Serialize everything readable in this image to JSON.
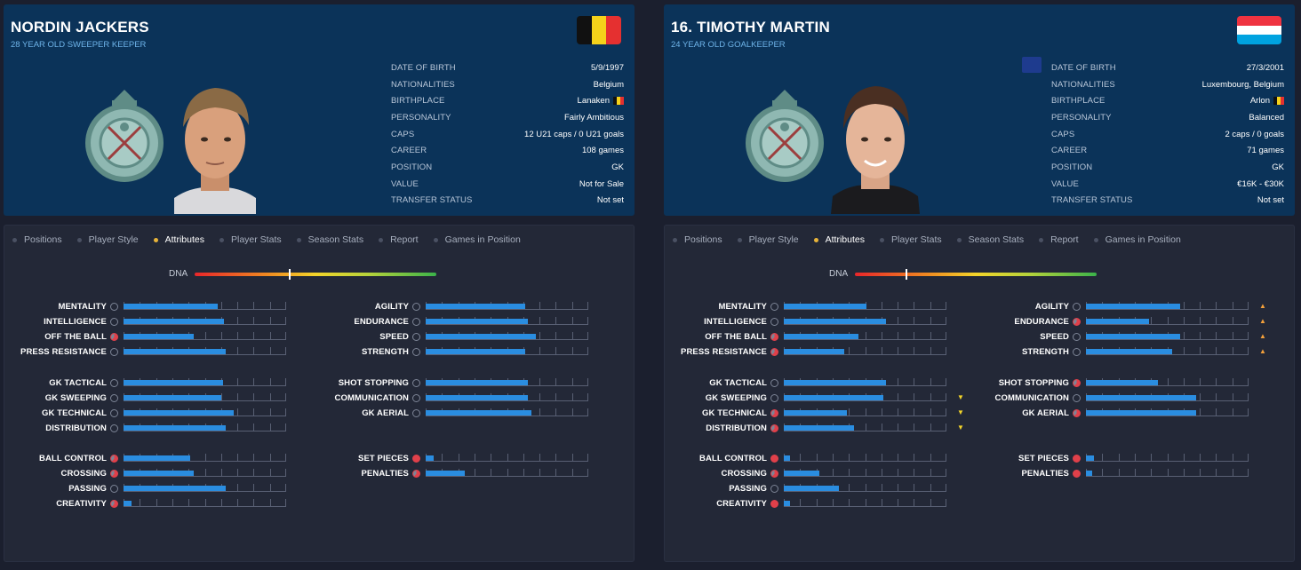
{
  "colors": {
    "accent": "#e8b43a",
    "bar": "#2a8de0",
    "header_bg": "#0b3359"
  },
  "tabs": [
    "Positions",
    "Player Style",
    "Attributes",
    "Player Stats",
    "Season Stats",
    "Report",
    "Games in Position"
  ],
  "active_tab": "Attributes",
  "dna_label": "DNA",
  "info_labels": {
    "dob": "DATE OF BIRTH",
    "nationalities": "NATIONALITIES",
    "birthplace": "BIRTHPLACE",
    "personality": "PERSONALITY",
    "caps": "CAPS",
    "career": "CAREER",
    "position": "POSITION",
    "value": "VALUE",
    "transfer": "TRANSFER STATUS"
  },
  "players": [
    {
      "name": "NORDIN JACKERS",
      "subtitle": "28 YEAR OLD  SWEEPER KEEPER",
      "flag": "belgium-flag",
      "club_crest": "royal-excelsior-virton-crest",
      "info": {
        "dob": "5/9/1997",
        "nationalities": "Belgium",
        "birthplace": "Lanaken",
        "personality": "Fairly Ambitious",
        "caps": "12 U21 caps / 0 U21 goals",
        "career": "108  games",
        "position": "GK",
        "value": "Not for Sale",
        "transfer": "Not set"
      },
      "dna_level": 0.39,
      "attributes": {
        "mental": [
          {
            "label": "MENTALITY",
            "level": 0.58
          },
          {
            "label": "INTELLIGENCE",
            "level": 0.62
          },
          {
            "label": "OFF THE BALL",
            "level": 0.43,
            "icon": "r"
          },
          {
            "label": "PRESS RESISTANCE",
            "level": 0.63
          }
        ],
        "physical": [
          {
            "label": "AGILITY",
            "level": 0.61
          },
          {
            "label": "ENDURANCE",
            "level": 0.63
          },
          {
            "label": "SPEED",
            "level": 0.68
          },
          {
            "label": "STRENGTH",
            "level": 0.61
          }
        ],
        "gk": [
          {
            "label": "GK TACTICAL",
            "level": 0.61
          },
          {
            "label": "GK SWEEPING",
            "level": 0.6
          },
          {
            "label": "GK TECHNICAL",
            "level": 0.68
          },
          {
            "label": "DISTRIBUTION",
            "level": 0.63
          }
        ],
        "gk2": [
          {
            "label": "SHOT STOPPING",
            "level": 0.63
          },
          {
            "label": "COMMUNICATION",
            "level": 0.63
          },
          {
            "label": "GK AERIAL",
            "level": 0.65
          }
        ],
        "technical": [
          {
            "label": "BALL CONTROL",
            "level": 0.41,
            "icon": "r"
          },
          {
            "label": "CROSSING",
            "level": 0.43,
            "icon": "r"
          },
          {
            "label": "PASSING",
            "level": 0.63
          },
          {
            "label": "CREATIVITY",
            "level": 0.05,
            "icon": "r"
          }
        ],
        "setpieces": [
          {
            "label": "SET PIECES",
            "level": 0.05,
            "icon": "rf"
          },
          {
            "label": "PENALTIES",
            "level": 0.24,
            "icon": "r"
          }
        ]
      }
    },
    {
      "name": "16. TIMOTHY MARTIN",
      "subtitle": "24 YEAR OLD GOALKEEPER",
      "flag": "luxembourg-flag",
      "club_crest": "royal-excelsior-virton-crest",
      "info": {
        "dob": "27/3/2001",
        "nationalities": "Luxembourg, Belgium",
        "birthplace": "Arlon",
        "personality": "Balanced",
        "caps": "2 caps / 0 goals",
        "career": "71  games",
        "position": "GK",
        "value": "€16K - €30K",
        "transfer": "Not set"
      },
      "dna_level": 0.21,
      "attributes": {
        "mental": [
          {
            "label": "MENTALITY",
            "level": 0.51
          },
          {
            "label": "INTELLIGENCE",
            "level": 0.63
          },
          {
            "label": "OFF THE BALL",
            "level": 0.46,
            "icon": "r"
          },
          {
            "label": "PRESS RESISTANCE",
            "level": 0.37,
            "icon": "r"
          }
        ],
        "physical": [
          {
            "label": "AGILITY",
            "level": 0.58,
            "arrow": "up"
          },
          {
            "label": "ENDURANCE",
            "level": 0.39,
            "icon": "r",
            "arrow": "up"
          },
          {
            "label": "SPEED",
            "level": 0.58,
            "arrow": "up"
          },
          {
            "label": "STRENGTH",
            "level": 0.53,
            "arrow": "up"
          }
        ],
        "gk": [
          {
            "label": "GK TACTICAL",
            "level": 0.63
          },
          {
            "label": "GK SWEEPING",
            "level": 0.61,
            "arrow": "down"
          },
          {
            "label": "GK TECHNICAL",
            "level": 0.39,
            "icon": "r",
            "arrow": "down"
          },
          {
            "label": "DISTRIBUTION",
            "level": 0.43,
            "icon": "r",
            "arrow": "down"
          }
        ],
        "gk2": [
          {
            "label": "SHOT STOPPING",
            "level": 0.44,
            "icon": "r"
          },
          {
            "label": "COMMUNICATION",
            "level": 0.68
          },
          {
            "label": "GK AERIAL",
            "level": 0.68,
            "icon": "r"
          }
        ],
        "technical": [
          {
            "label": "BALL CONTROL",
            "level": 0.04,
            "icon": "rf"
          },
          {
            "label": "CROSSING",
            "level": 0.22,
            "icon": "r"
          },
          {
            "label": "PASSING",
            "level": 0.34
          },
          {
            "label": "CREATIVITY",
            "level": 0.04,
            "icon": "rf"
          }
        ],
        "setpieces": [
          {
            "label": "SET PIECES",
            "level": 0.05,
            "icon": "rf"
          },
          {
            "label": "PENALTIES",
            "level": 0.04,
            "icon": "rf"
          }
        ]
      }
    }
  ]
}
